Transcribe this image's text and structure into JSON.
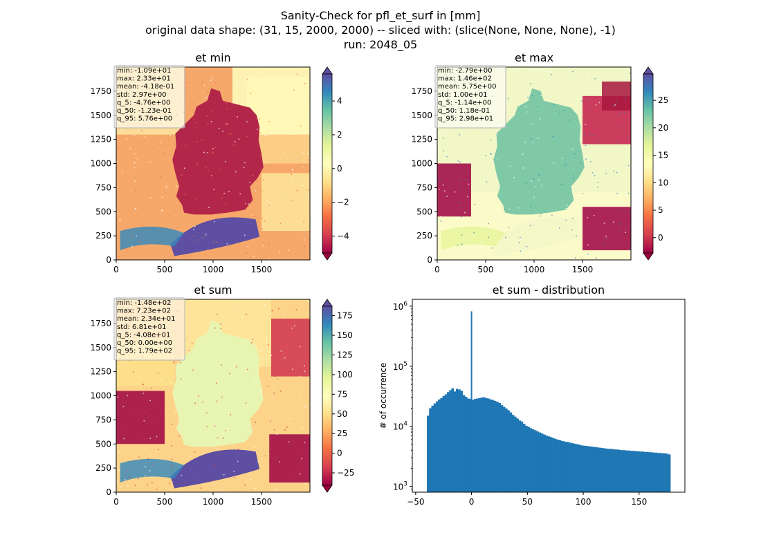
{
  "suptitle": {
    "line1": "Sanity-Check for pfl_et_surf in [mm]",
    "line2": "original data shape: (31, 15, 2000, 2000) -- sliced with: (slice(None, None, None), -1)",
    "line3": "run: 2048_05"
  },
  "chart_data": [
    {
      "type": "heatmap",
      "title": "et min",
      "colormap": "Spectral",
      "xlim": [
        0,
        2000
      ],
      "ylim": [
        0,
        2000
      ],
      "x_ticks": [
        0,
        500,
        1000,
        1500
      ],
      "y_ticks": [
        0,
        250,
        500,
        750,
        1000,
        1250,
        1500,
        1750
      ],
      "colorbar": {
        "vmin": -5.0,
        "vmax": 5.6,
        "ticks": [
          -4,
          -2,
          0,
          2,
          4
        ],
        "extend": "both"
      },
      "stats": [
        "min: -1.09e+01",
        "max: 2.33e+01",
        "mean: -4.18e-01",
        "std: 2.97e+00",
        "q_5: -4.76e+00",
        "q_50: -1.23e-01",
        "q_95: 5.76e+00"
      ]
    },
    {
      "type": "heatmap",
      "title": "et max",
      "colormap": "Spectral",
      "xlim": [
        0,
        2000
      ],
      "ylim": [
        0,
        2000
      ],
      "x_ticks": [
        0,
        500,
        1000,
        1500
      ],
      "y_ticks": [
        0,
        250,
        500,
        750,
        1000,
        1250,
        1500,
        1750
      ],
      "colorbar": {
        "vmin": -2.8,
        "vmax": 29.8,
        "ticks": [
          0,
          5,
          10,
          15,
          20,
          25
        ],
        "extend": "both"
      },
      "stats": [
        "min: -2.79e+00",
        "max: 1.46e+02",
        "mean: 5.75e+00",
        "std: 1.00e+01",
        "q_5: -1.14e+00",
        "q_50: 1.18e-01",
        "q_95: 2.98e+01"
      ]
    },
    {
      "type": "heatmap",
      "title": "et sum",
      "colormap": "Spectral",
      "xlim": [
        0,
        2000
      ],
      "ylim": [
        0,
        2000
      ],
      "x_ticks": [
        0,
        500,
        1000,
        1500
      ],
      "y_ticks": [
        0,
        250,
        500,
        750,
        1000,
        1250,
        1500,
        1750
      ],
      "colorbar": {
        "vmin": -40.8,
        "vmax": 187.0,
        "ticks": [
          -25,
          0,
          25,
          50,
          75,
          100,
          125,
          150,
          175
        ],
        "extend": "both"
      },
      "stats": [
        "min: -1.48e+02",
        "max: 7.23e+02",
        "mean: 2.34e+01",
        "std: 6.81e+01",
        "q_5: -4.08e+01",
        "q_50: 0.00e+00",
        "q_95: 1.79e+02"
      ]
    },
    {
      "type": "bar",
      "title": "et sum - distribution",
      "ylabel": "# of occurrence",
      "xlabel": "",
      "yscale": "log",
      "xlim": [
        -53,
        191
      ],
      "ylim": [
        800,
        1300000
      ],
      "x_ticks": [
        -50,
        0,
        50,
        100,
        150
      ],
      "y_ticks": [
        {
          "value": 1000,
          "base": "10",
          "exp": "3"
        },
        {
          "value": 10000,
          "base": "10",
          "exp": "4"
        },
        {
          "value": 100000,
          "base": "10",
          "exp": "5"
        },
        {
          "value": 1000000,
          "base": "10",
          "exp": "6"
        }
      ],
      "bin_edges": [
        -40.8,
        179.0
      ],
      "color": "#1f77b4",
      "x": [
        -39,
        -37,
        -35,
        -33,
        -31,
        -29,
        -27,
        -25,
        -23,
        -21,
        -19,
        -17,
        -15,
        -13,
        -11,
        -9,
        -7,
        -5,
        -3,
        -1,
        0,
        1,
        3,
        5,
        7,
        9,
        11,
        13,
        15,
        17,
        19,
        21,
        23,
        25,
        27,
        29,
        31,
        33,
        35,
        37,
        39,
        41,
        43,
        45,
        47,
        49,
        51,
        53,
        55,
        57,
        59,
        61,
        63,
        65,
        67,
        69,
        71,
        73,
        75,
        77,
        79,
        81,
        83,
        85,
        87,
        89,
        91,
        93,
        95,
        97,
        99,
        101,
        103,
        105,
        107,
        109,
        111,
        113,
        115,
        117,
        119,
        121,
        123,
        125,
        127,
        129,
        131,
        133,
        135,
        137,
        139,
        141,
        143,
        145,
        147,
        149,
        151,
        153,
        155,
        157,
        159,
        161,
        163,
        165,
        167,
        169,
        171,
        173,
        175,
        177
      ],
      "values": [
        15000,
        20000,
        22000,
        24000,
        26000,
        28000,
        29500,
        32000,
        34000,
        37000,
        40000,
        43000,
        38000,
        42000,
        41000,
        39000,
        33000,
        31000,
        29000,
        28500,
        820000,
        27500,
        28500,
        29000,
        29500,
        30000,
        30500,
        29500,
        29000,
        28000,
        27500,
        26500,
        25500,
        24500,
        22500,
        21000,
        19800,
        18500,
        17000,
        15500,
        14500,
        13500,
        12500,
        12000,
        11000,
        10200,
        9800,
        9300,
        8900,
        8600,
        8200,
        7900,
        7600,
        7300,
        7000,
        6800,
        6600,
        6400,
        6200,
        6000,
        5900,
        5700,
        5600,
        5500,
        5400,
        5300,
        5200,
        5100,
        5000,
        4900,
        4800,
        4750,
        4700,
        4650,
        4600,
        4550,
        4500,
        4450,
        4400,
        4350,
        4300,
        4250,
        4200,
        4200,
        4150,
        4100,
        4100,
        4050,
        4000,
        4000,
        3950,
        3950,
        3900,
        3900,
        3850,
        3850,
        3800,
        3800,
        3750,
        3750,
        3700,
        3700,
        3650,
        3650,
        3600,
        3600,
        3550,
        3550,
        3500,
        3400
      ]
    }
  ]
}
